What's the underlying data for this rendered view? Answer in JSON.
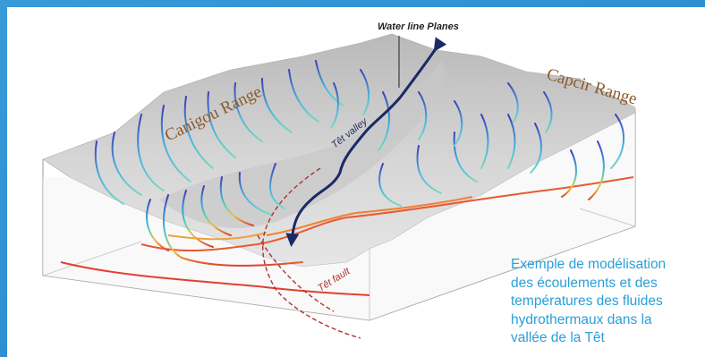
{
  "colors": {
    "frame_blue": "#2f8fd0",
    "caption_blue": "#2a9fd8",
    "range_label": "#8a5a2b",
    "fault_red": "#b03030",
    "arrow_navy": "#1b2a66"
  },
  "diagram": {
    "water_line_label": "Water line Planes",
    "canigou_label": "Canigou Range",
    "capcir_label": "Capcir Range",
    "tet_valley_label": "Têt valley",
    "tet_fault_label": "Têt fault"
  },
  "caption": {
    "lines": [
      "Exemple de modélisation",
      "des écoulements et des",
      "températures des fluides",
      "hydrothermaux dans la",
      "vallée de la Têt"
    ]
  }
}
